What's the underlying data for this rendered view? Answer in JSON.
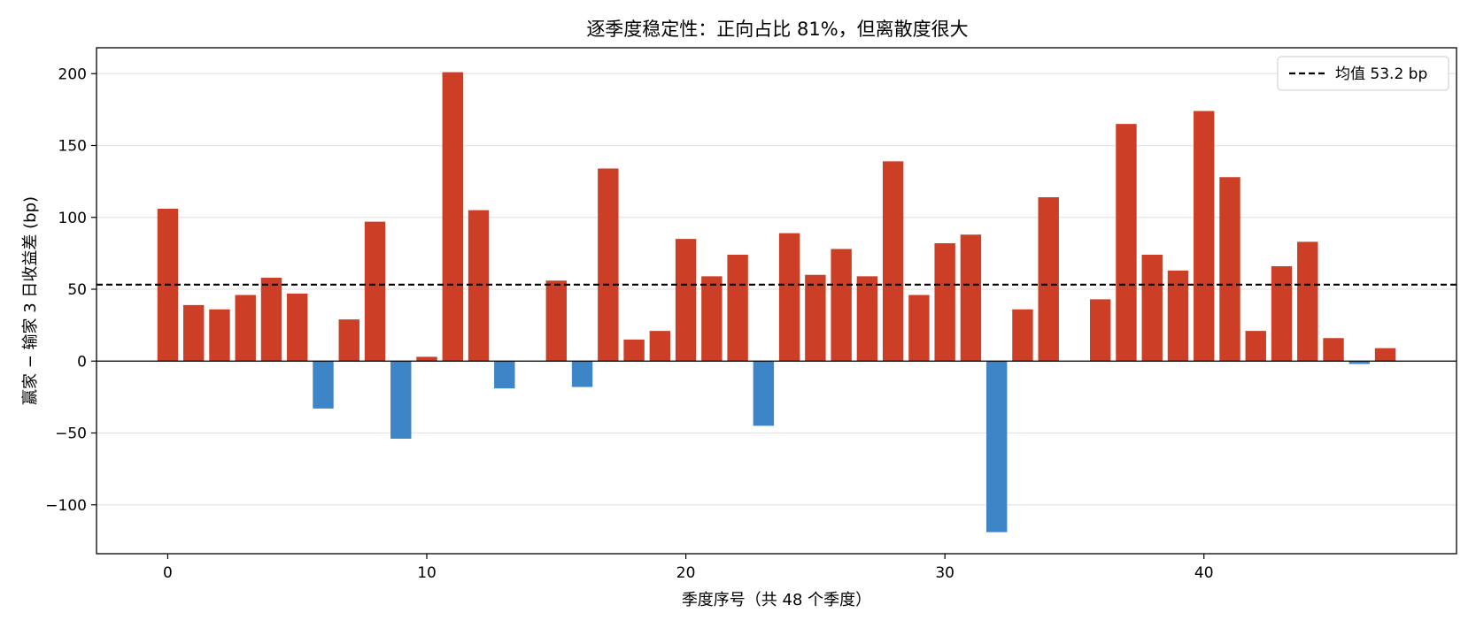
{
  "chart_data": {
    "type": "bar",
    "title": "逐季度稳定性：正向占比 81%，但离散度很大",
    "xlabel": "季度序号（共 48 个季度）",
    "ylabel": "赢家 − 输家 3 日收益差 (bp)",
    "x": [
      0,
      1,
      2,
      3,
      4,
      5,
      6,
      7,
      8,
      9,
      10,
      11,
      12,
      13,
      14,
      15,
      16,
      17,
      18,
      19,
      20,
      21,
      22,
      23,
      24,
      25,
      26,
      27,
      28,
      29,
      30,
      31,
      32,
      33,
      34,
      35,
      36,
      37,
      38,
      39,
      40,
      41,
      42,
      43,
      44,
      45,
      46,
      47
    ],
    "values": [
      106,
      39,
      36,
      46,
      58,
      47,
      -33,
      29,
      97,
      -54,
      3,
      201,
      105,
      -19,
      0,
      56,
      -18,
      134,
      15,
      21,
      85,
      59,
      74,
      -45,
      89,
      60,
      78,
      59,
      139,
      46,
      82,
      88,
      -119,
      36,
      114,
      0,
      43,
      165,
      74,
      63,
      174,
      128,
      21,
      66,
      83,
      16,
      -2,
      9
    ],
    "xlim": [
      -2.75,
      49.75
    ],
    "ylim": [
      -134,
      218
    ],
    "xticks": [
      0,
      10,
      20,
      30,
      40
    ],
    "yticks": [
      -100,
      -50,
      0,
      50,
      100,
      150,
      200
    ],
    "grid": "horizontal",
    "mean_line": {
      "value": 53.2,
      "label": "均值 53.2 bp"
    },
    "legend_position": "top-right",
    "colors": {
      "positive": "#cc3f26",
      "negative": "#3d85c6",
      "mean": "#000000",
      "grid": "#e5e5e5"
    }
  }
}
